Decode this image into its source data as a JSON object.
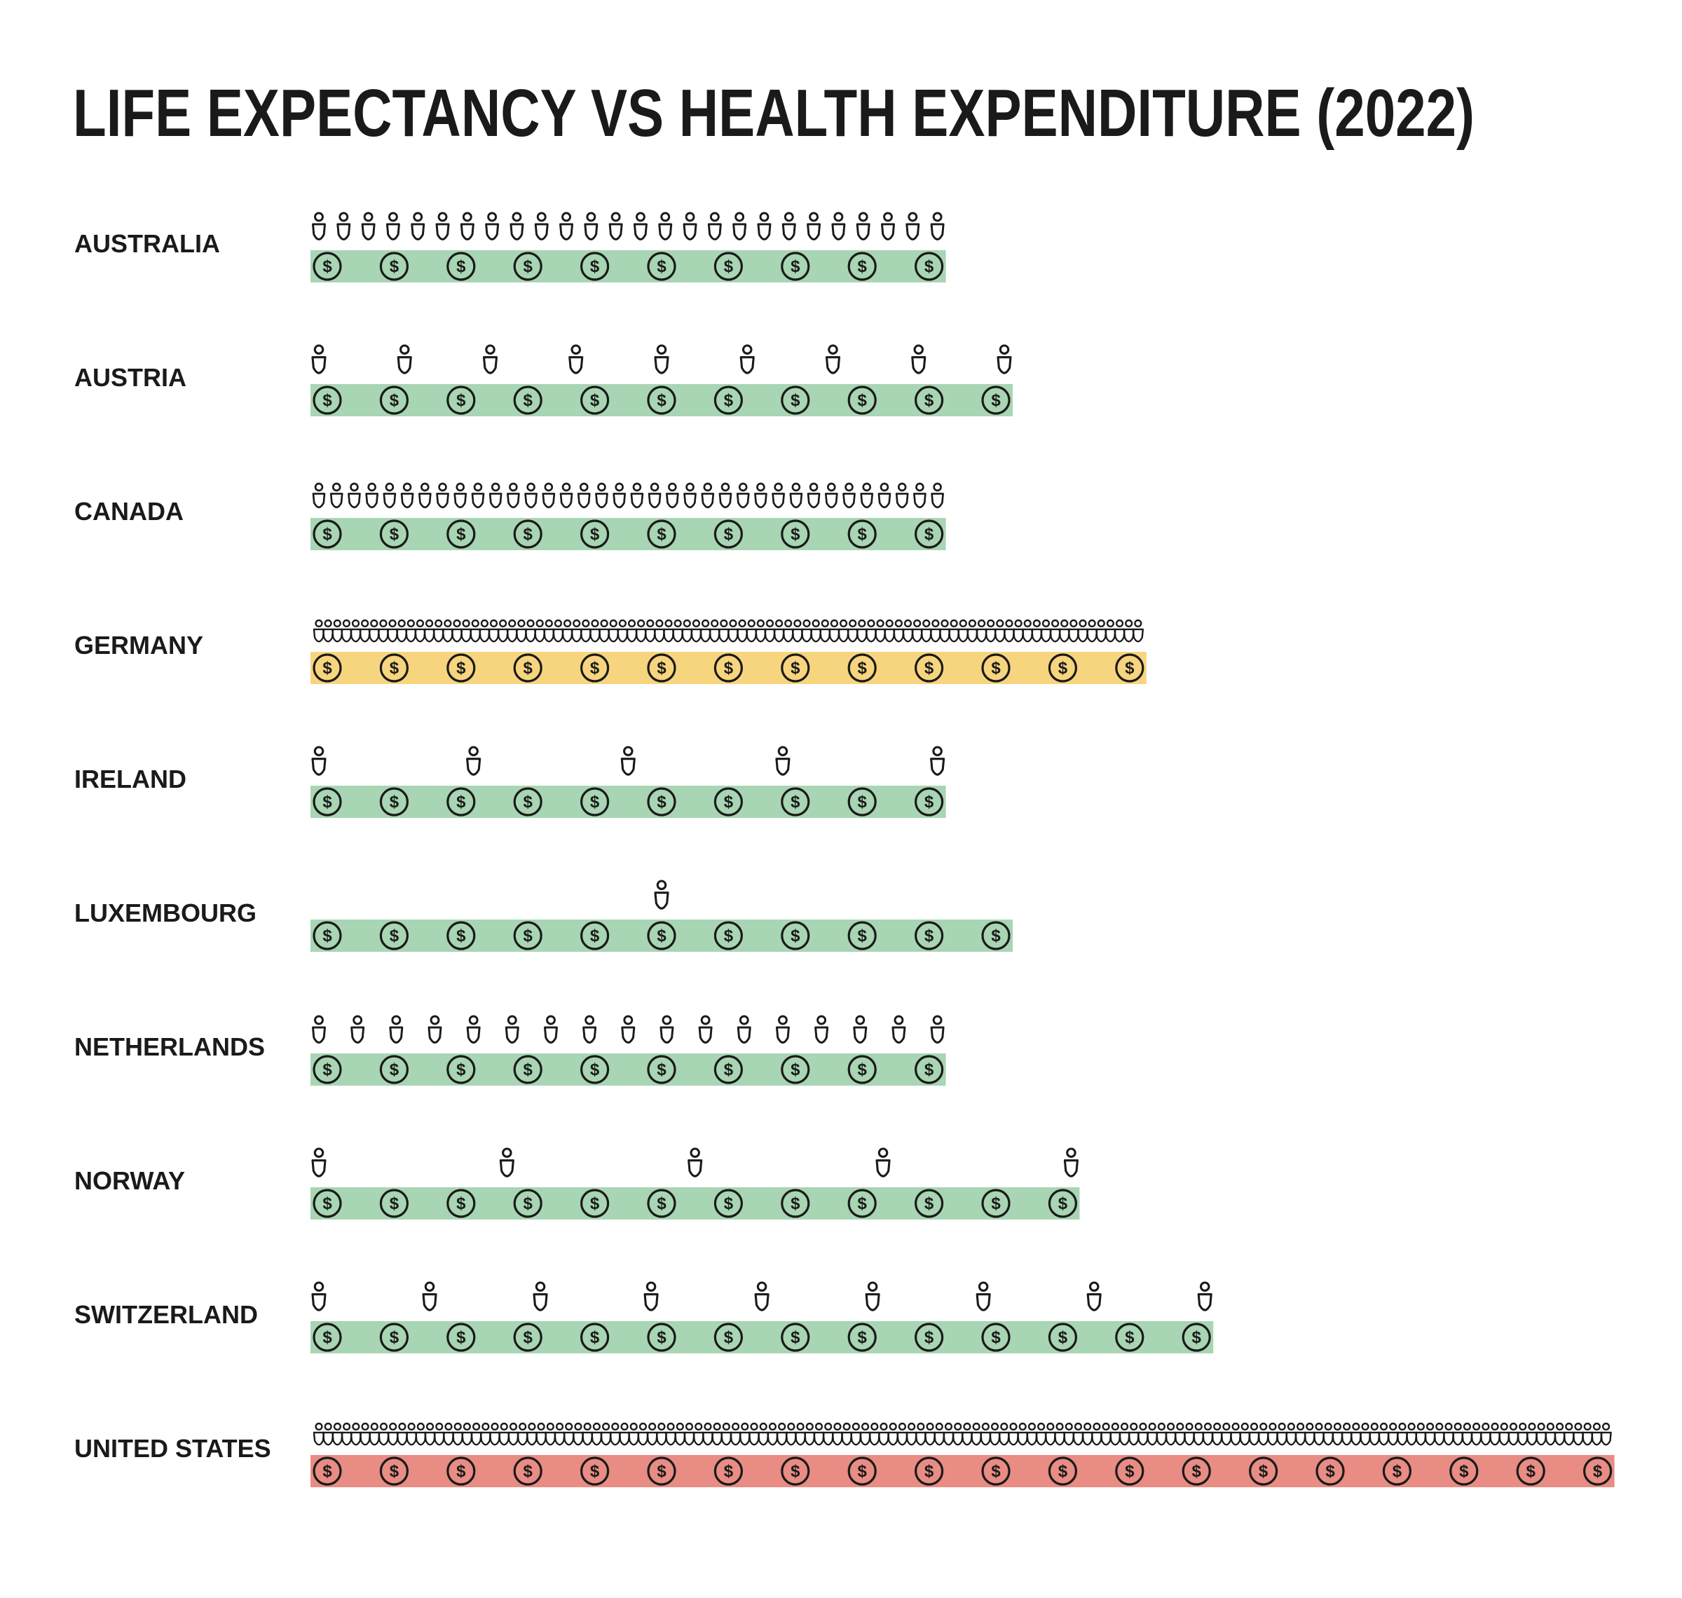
{
  "chart_data": {
    "type": "pictograph",
    "title": "LIFE EXPECTANCY VS HEALTH EXPENDITURE (2022)",
    "rows": [
      {
        "country": "AUSTRALIA",
        "people_icons": 26,
        "money_icons": 10,
        "bar_color": "#a8d5b3"
      },
      {
        "country": "AUSTRIA",
        "people_icons": 9,
        "money_icons": 11,
        "bar_color": "#a8d5b3"
      },
      {
        "country": "CANADA",
        "people_icons": 36,
        "money_icons": 10,
        "bar_color": "#a8d5b3"
      },
      {
        "country": "GERMANY",
        "people_icons": 90,
        "money_icons": 13,
        "bar_color": "#f7d57e"
      },
      {
        "country": "IRELAND",
        "people_icons": 5,
        "money_icons": 10,
        "bar_color": "#a8d5b3"
      },
      {
        "country": "LUXEMBOURG",
        "people_icons": 1,
        "money_icons": 11,
        "bar_color": "#a8d5b3"
      },
      {
        "country": "NETHERLANDS",
        "people_icons": 17,
        "money_icons": 10,
        "bar_color": "#a8d5b3"
      },
      {
        "country": "NORWAY",
        "people_icons": 5,
        "money_icons": 12,
        "bar_color": "#a8d5b3"
      },
      {
        "country": "SWITZERLAND",
        "people_icons": 9,
        "money_icons": 14,
        "bar_color": "#a8d5b3"
      },
      {
        "country": "UNITED STATES",
        "people_icons": 140,
        "money_icons": 20,
        "bar_color": "#e88c84"
      }
    ]
  },
  "colors": {
    "icon_stroke": "#1a1a1a",
    "background": "#ffffff"
  },
  "icons": {
    "person": "person-icon",
    "money": "dollar-coin-icon"
  }
}
